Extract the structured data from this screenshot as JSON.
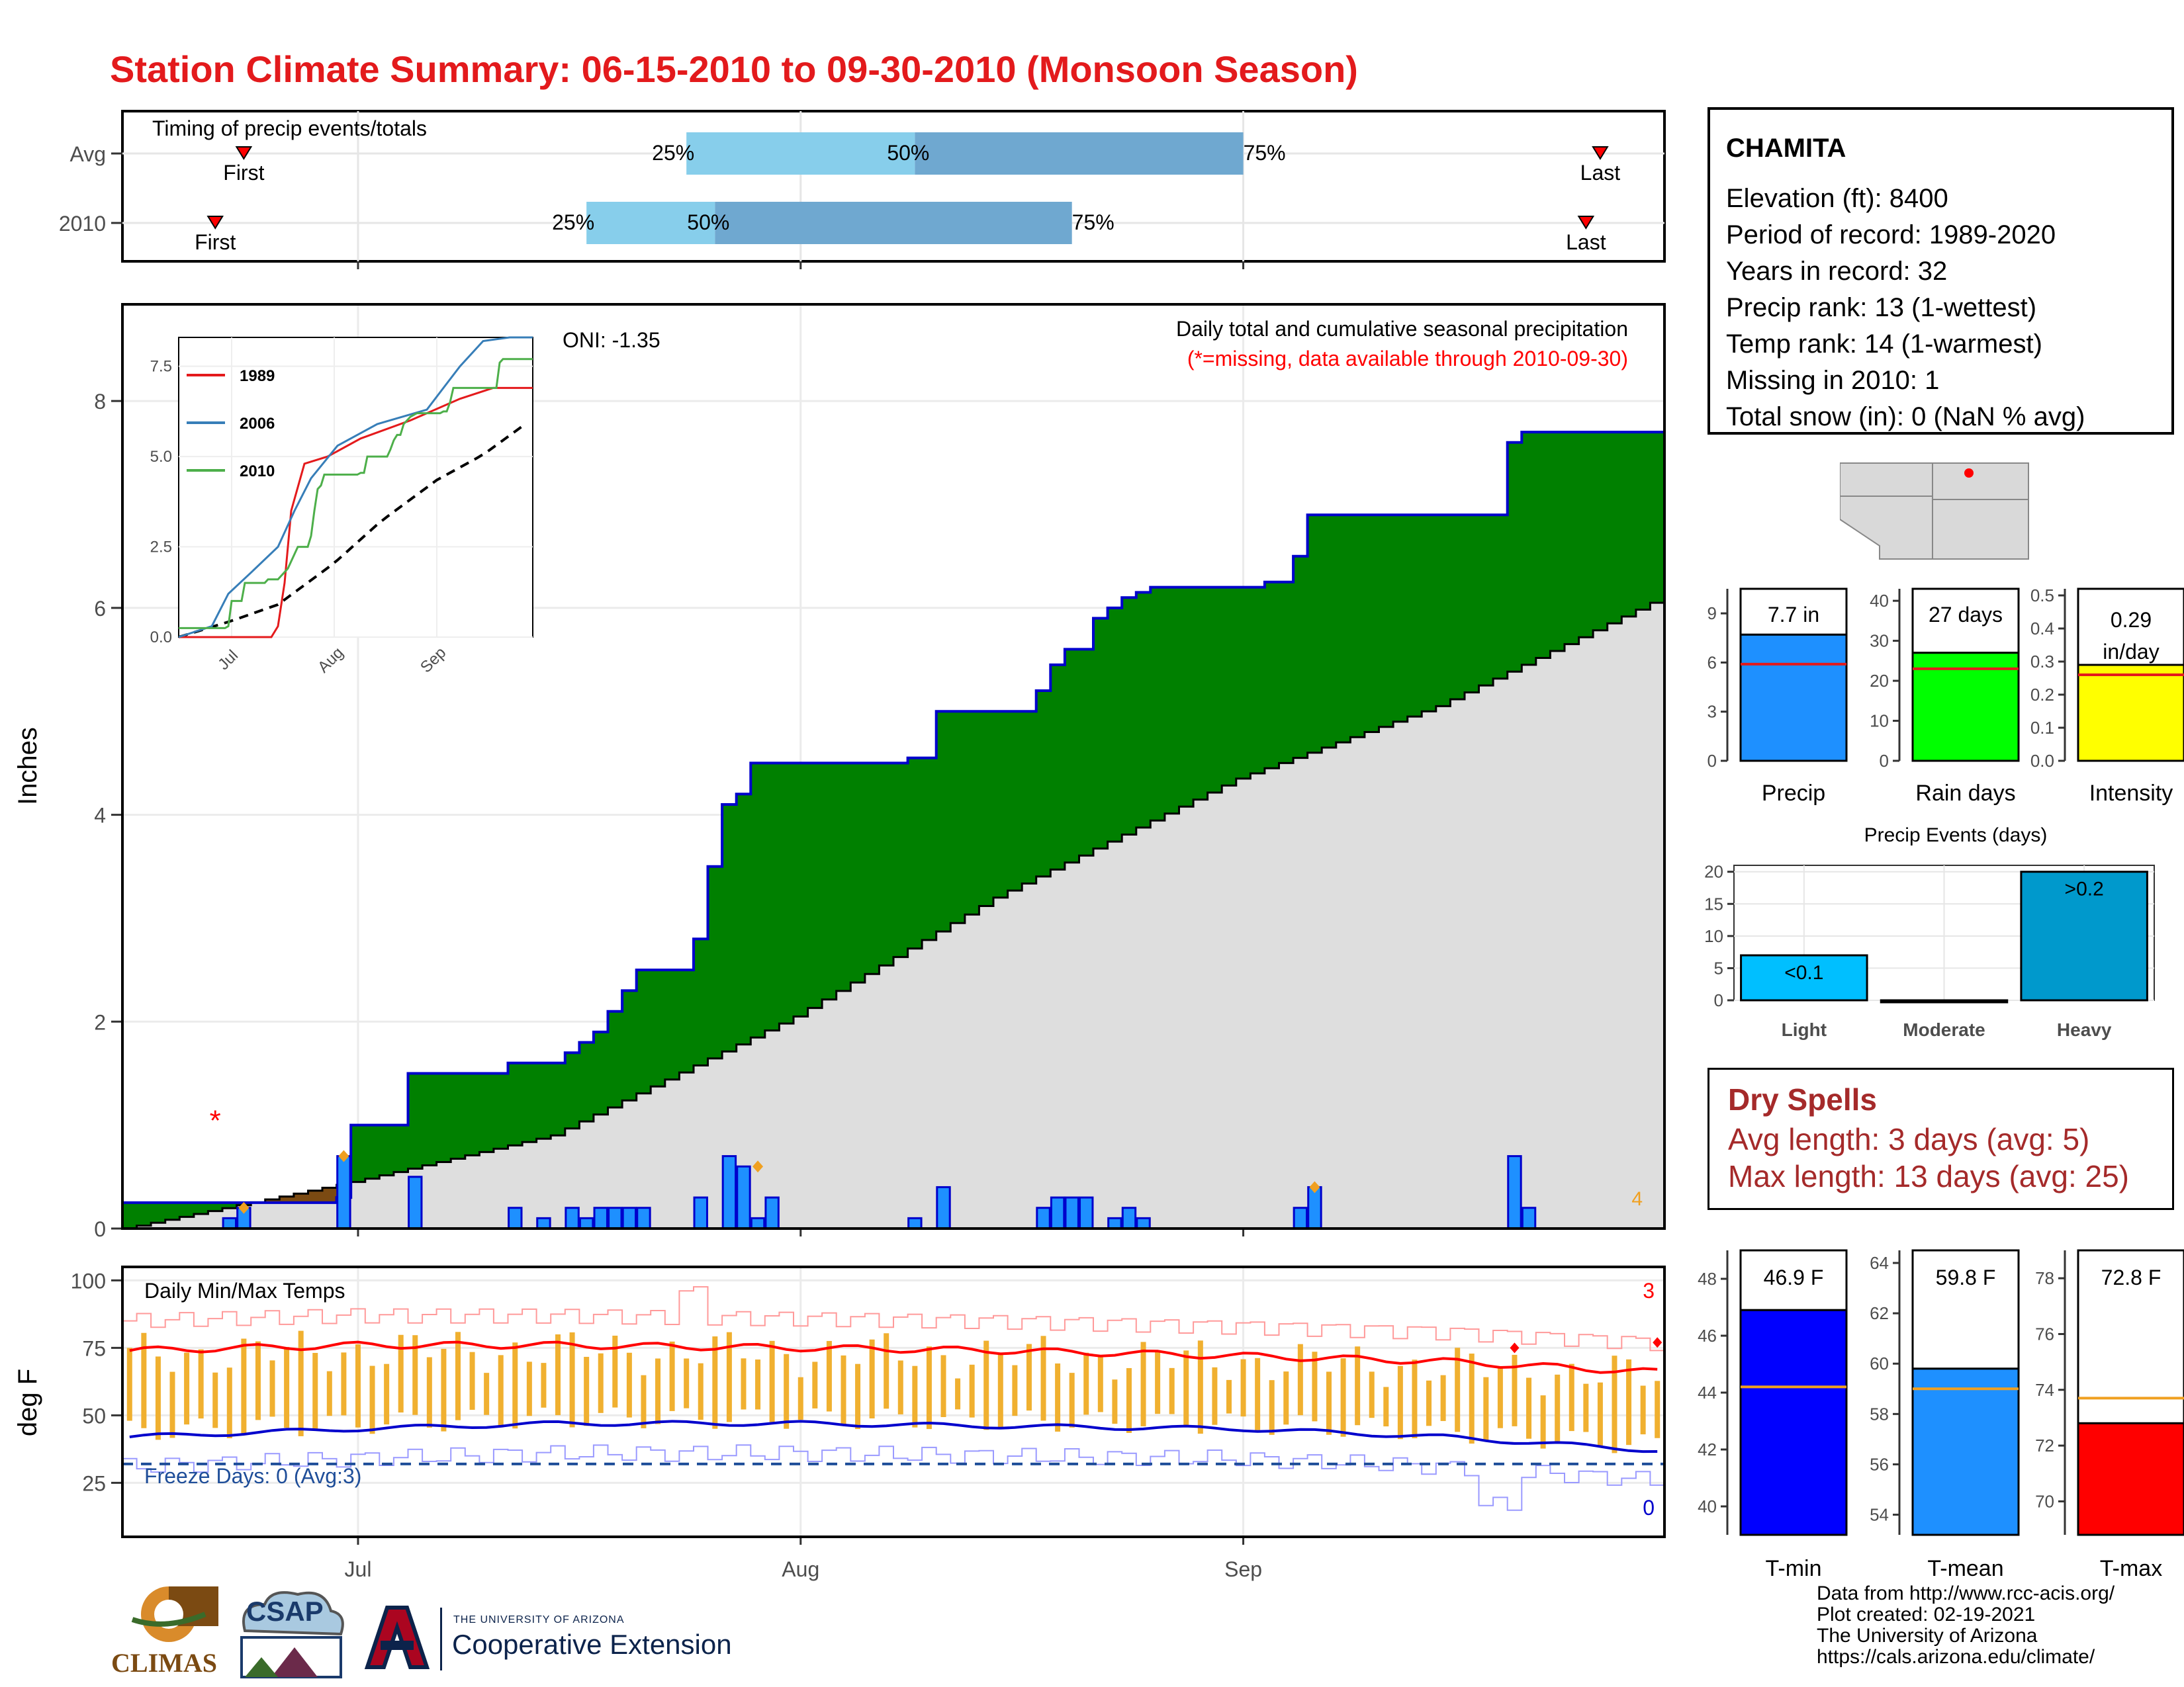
{
  "title": "Station Climate Summary: 06-15-2010 to 09-30-2010 (Monsoon Season)",
  "colors": {
    "title_red": "#e31a1c",
    "green": "#008000",
    "precip_blue": "#1e90ff",
    "light_blue": "#87ceeb",
    "mid_blue": "#6fa8d0",
    "brown": "#7b4a12",
    "gray_fill": "#dedede",
    "bar_outline": "#0000cc",
    "orange": "#f0b030"
  },
  "timing": {
    "title": "Timing of precip events/totals",
    "rows": [
      {
        "label": "Avg",
        "first": "First",
        "last": "Last",
        "p25": "25%",
        "p50": "50%",
        "p75": "75%",
        "first_date": "2010-06-23",
        "last_date": "2010-09-26",
        "p25_date": "2010-07-24",
        "p50_date": "2010-08-09",
        "p75_date": "2010-09-01"
      },
      {
        "label": "2010",
        "first": "First",
        "last": "Last",
        "p25": "25%",
        "p50": "50%",
        "p75": "75%",
        "first_date": "2010-06-21",
        "last_date": "2010-09-25",
        "p25_date": "2010-07-17",
        "p50_date": "2010-07-26",
        "p75_date": "2010-08-20"
      }
    ]
  },
  "station": {
    "name": "CHAMITA",
    "lines": [
      "Elevation (ft): 8400",
      "Period of record: 1989-2020",
      "Years in record: 32",
      "Precip rank: 13 (1-wettest)",
      "Temp rank: 14 (1-warmest)",
      "Missing in 2010: 1",
      "Total snow (in): 0 (NaN % avg)"
    ]
  },
  "precip_panel": {
    "ylabel": "Inches",
    "oni": "ONI: -1.35",
    "subtitle": "Daily total and cumulative seasonal precipitation",
    "missing_note": "(*=missing, data available through 2010-09-30)",
    "missing_marker": "*",
    "corner_count": "4",
    "x_ticks": [
      "Jul",
      "Aug",
      "Sep"
    ],
    "y_ticks": [
      "0",
      "2",
      "4",
      "6",
      "8"
    ]
  },
  "inset": {
    "legend": [
      "1989",
      "2006",
      "2010"
    ],
    "y_ticks": [
      "0.0",
      "2.5",
      "5.0",
      "7.5"
    ],
    "x_ticks": [
      "Jul",
      "Aug",
      "Sep"
    ]
  },
  "summary_bars": [
    {
      "label": "Precip",
      "value_label": "7.7 in",
      "ticks": [
        "0",
        "3",
        "6",
        "9"
      ],
      "color": "#1e90ff"
    },
    {
      "label": "Rain days",
      "value_label": "27 days",
      "ticks": [
        "0",
        "10",
        "20",
        "30",
        "40"
      ],
      "color": "#00ff00"
    },
    {
      "label": "Intensity",
      "value_label_1": "0.29",
      "value_label_2": "in/day",
      "ticks": [
        "0.0",
        "0.1",
        "0.2",
        "0.3",
        "0.4",
        "0.5"
      ],
      "color": "#ffff00"
    }
  ],
  "events": {
    "title": "Precip Events (days)",
    "categories": [
      "Light",
      "Moderate",
      "Heavy"
    ],
    "bar_labels": [
      "<0.1",
      "",
      ">0.2"
    ],
    "ticks": [
      "0",
      "5",
      "10",
      "15",
      "20"
    ]
  },
  "dry_spells": {
    "title": "Dry Spells",
    "avg": "Avg length: 3 days (avg: 5)",
    "max": "Max length: 13 days (avg: 25)"
  },
  "temp_panel": {
    "ylabel": "deg F",
    "title": "Daily Min/Max Temps",
    "freeze": "Freeze Days: 0 (Avg:3)",
    "count_hot": "3",
    "count_cold": "0",
    "y_ticks": [
      "25",
      "50",
      "75",
      "100"
    ],
    "x_ticks": [
      "Jul",
      "Aug",
      "Sep"
    ]
  },
  "temp_bars": [
    {
      "label": "T-min",
      "value_label": "46.9 F",
      "ticks": [
        "40",
        "42",
        "44",
        "46",
        "48"
      ],
      "color": "#0000ff"
    },
    {
      "label": "T-mean",
      "value_label": "59.8 F",
      "ticks": [
        "54",
        "56",
        "58",
        "60",
        "62",
        "64"
      ],
      "color": "#1e90ff"
    },
    {
      "label": "T-max",
      "value_label": "72.8 F",
      "ticks": [
        "70",
        "72",
        "74",
        "76",
        "78"
      ],
      "color": "#ff0000"
    }
  ],
  "footer": {
    "lines": [
      "Data from http://www.rcc-acis.org/",
      "Plot created: 02-19-2021",
      "The University of Arizona",
      "https://cals.arizona.edu/climate/"
    ]
  },
  "logos": {
    "climas": "CLIMAS",
    "csap": "CSAP",
    "ua_small": "THE UNIVERSITY OF ARIZONA",
    "ua_big": "Cooperative Extension"
  },
  "chart_data": [
    {
      "type": "area",
      "title": "Daily total and cumulative seasonal precipitation",
      "ylabel": "Inches",
      "ylim": [
        0,
        8.5
      ],
      "x_range": [
        "2010-06-15",
        "2010-09-30"
      ],
      "series": [
        {
          "name": "cumulative 2010",
          "x": [
            "2010-06-15",
            "2010-06-30",
            "2010-07-01",
            "2010-07-04",
            "2010-07-05",
            "2010-07-06",
            "2010-07-12",
            "2010-07-16",
            "2010-07-17",
            "2010-07-18",
            "2010-07-19",
            "2010-07-20",
            "2010-07-21",
            "2010-07-22",
            "2010-07-25",
            "2010-07-26",
            "2010-07-27",
            "2010-07-28",
            "2010-07-29",
            "2010-08-08",
            "2010-08-09",
            "2010-08-10",
            "2010-08-11",
            "2010-08-14",
            "2010-08-18",
            "2010-08-19",
            "2010-08-20",
            "2010-08-21",
            "2010-08-22",
            "2010-08-23",
            "2010-08-24",
            "2010-08-25",
            "2010-08-26",
            "2010-08-29",
            "2010-09-03",
            "2010-09-05",
            "2010-09-06",
            "2010-09-07",
            "2010-09-08",
            "2010-09-20",
            "2010-09-21",
            "2010-09-22",
            "2010-09-30"
          ],
          "y": [
            0.25,
            0.3,
            1.0,
            1.0,
            1.5,
            1.5,
            1.6,
            1.7,
            1.8,
            1.9,
            2.1,
            2.3,
            2.5,
            2.5,
            2.8,
            3.5,
            4.1,
            4.2,
            4.5,
            4.5,
            4.55,
            4.55,
            5.0,
            5.0,
            5.2,
            5.45,
            5.6,
            5.6,
            5.9,
            6.0,
            6.1,
            6.15,
            6.2,
            6.2,
            6.25,
            6.5,
            6.9,
            6.9,
            6.9,
            7.6,
            7.7,
            7.7,
            7.7
          ]
        },
        {
          "name": "cumulative average",
          "x": [
            "2010-06-15",
            "2010-07-01",
            "2010-07-15",
            "2010-08-01",
            "2010-08-15",
            "2010-09-01",
            "2010-09-15",
            "2010-09-30"
          ],
          "y": [
            0.0,
            0.45,
            0.9,
            2.05,
            3.2,
            4.35,
            5.05,
            6.05
          ]
        }
      ],
      "daily_bars": {
        "x": [
          "2010-06-22",
          "2010-06-23",
          "2010-06-30",
          "2010-07-05",
          "2010-07-12",
          "2010-07-14",
          "2010-07-16",
          "2010-07-17",
          "2010-07-18",
          "2010-07-19",
          "2010-07-20",
          "2010-07-21",
          "2010-07-25",
          "2010-07-27",
          "2010-07-28",
          "2010-07-29",
          "2010-07-30",
          "2010-08-09",
          "2010-08-11",
          "2010-08-18",
          "2010-08-19",
          "2010-08-20",
          "2010-08-21",
          "2010-08-23",
          "2010-08-24",
          "2010-08-25",
          "2010-09-05",
          "2010-09-06",
          "2010-09-20",
          "2010-09-21"
        ],
        "y": [
          0.1,
          0.2,
          0.7,
          0.5,
          0.2,
          0.1,
          0.2,
          0.1,
          0.2,
          0.2,
          0.2,
          0.2,
          0.3,
          0.7,
          0.6,
          0.1,
          0.3,
          0.1,
          0.4,
          0.2,
          0.3,
          0.3,
          0.3,
          0.1,
          0.2,
          0.1,
          0.2,
          0.4,
          0.7,
          0.2
        ]
      },
      "oni": -1.35
    },
    {
      "type": "line",
      "title": "Daily Min/Max Temps",
      "ylabel": "deg F",
      "ylim": [
        5,
        105
      ],
      "series": [
        {
          "name": "avg max",
          "x": [
            "2010-06-15",
            "2010-07-01",
            "2010-07-15",
            "2010-08-01",
            "2010-08-15",
            "2010-09-01",
            "2010-09-15",
            "2010-09-30"
          ],
          "y": [
            74,
            76,
            76,
            75,
            74,
            72,
            70,
            66
          ]
        },
        {
          "name": "avg min",
          "x": [
            "2010-06-15",
            "2010-07-01",
            "2010-07-15",
            "2010-08-01",
            "2010-08-15",
            "2010-09-01",
            "2010-09-15",
            "2010-09-30"
          ],
          "y": [
            42,
            45,
            47,
            47,
            46,
            45,
            42,
            37
          ]
        },
        {
          "name": "freeze line",
          "x": [
            "2010-06-15",
            "2010-09-30"
          ],
          "y": [
            32,
            32
          ]
        }
      ]
    },
    {
      "type": "bar",
      "categories": [
        "Precip",
        "Rain days",
        "Intensity"
      ],
      "values": [
        7.7,
        27,
        0.29
      ],
      "averages": [
        5.9,
        23,
        0.26
      ]
    },
    {
      "type": "bar",
      "title": "Precip Events (days)",
      "categories": [
        "Light",
        "Moderate",
        "Heavy"
      ],
      "values": [
        7,
        0,
        20
      ],
      "ylim": [
        0,
        21
      ]
    },
    {
      "type": "bar",
      "categories": [
        "T-min",
        "T-mean",
        "T-max"
      ],
      "values": [
        46.9,
        59.8,
        72.8
      ],
      "averages": [
        44.2,
        59.0,
        73.7
      ]
    }
  ]
}
